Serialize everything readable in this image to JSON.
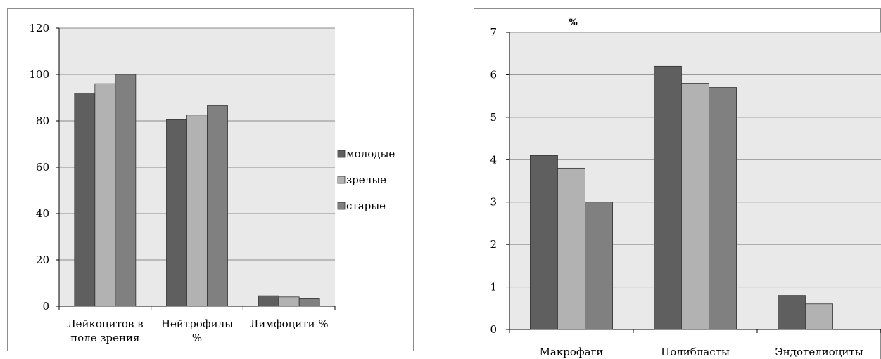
{
  "colors": {
    "series": [
      "#5f5f5f",
      "#b2b2b2",
      "#808080"
    ],
    "plot_bg": "#e9e9e9",
    "grid": "#8c8c8c"
  },
  "chart_data": [
    {
      "type": "bar",
      "title": "",
      "categories": [
        [
          "Лейкоцитов в",
          "поле зрения"
        ],
        [
          "Нейтрофилы",
          "%"
        ],
        [
          "Лимфоцити %"
        ]
      ],
      "series": [
        {
          "name": "молодые",
          "values": [
            92,
            96,
            100
          ]
        },
        {
          "name": "зрелые",
          "values": [
            80.5,
            82.5,
            86.5
          ]
        },
        {
          "name": "старые",
          "values": [
            4.5,
            4,
            3.5
          ]
        }
      ],
      "series_layout": "value groups per category in order; values listed per category below",
      "values_by_category": [
        [
          92,
          96,
          100
        ],
        [
          80.5,
          82.5,
          86.5
        ],
        [
          4.5,
          4,
          3.5
        ]
      ],
      "ylim": [
        0,
        120
      ],
      "yticks": [
        0,
        20,
        40,
        60,
        80,
        100,
        120
      ],
      "grid": true,
      "legend": {
        "position": "right",
        "entries": [
          "молодые",
          "зрелые",
          "старые"
        ]
      }
    },
    {
      "type": "bar",
      "title": "%",
      "categories": [
        [
          "Макрофаги"
        ],
        [
          "Полибласты"
        ],
        [
          "Эндотелиоциты"
        ]
      ],
      "values_by_category": [
        [
          4.1,
          3.8,
          3.0
        ],
        [
          6.2,
          5.8,
          5.7
        ],
        [
          0.8,
          0.6,
          0
        ]
      ],
      "ylim": [
        0,
        7
      ],
      "yticks": [
        0,
        1,
        2,
        3,
        4,
        5,
        6,
        7
      ],
      "grid": true
    }
  ]
}
